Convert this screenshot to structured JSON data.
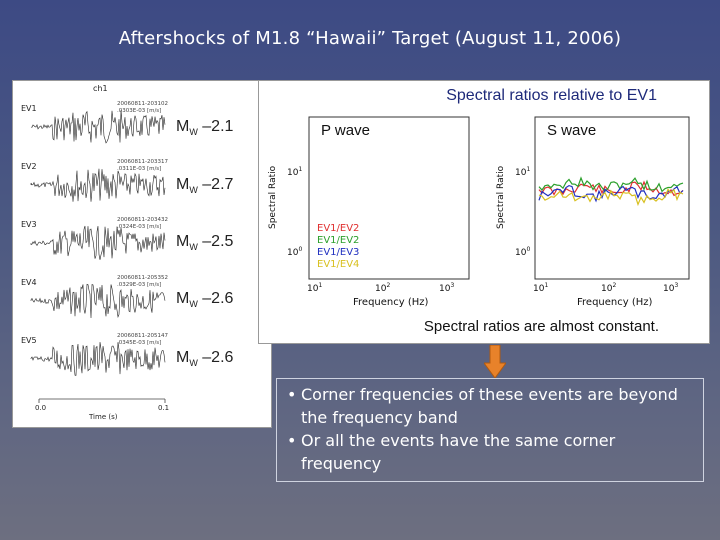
{
  "slide": {
    "title": "Aftershocks of M1.8 “Hawaii” Target (August 11, 2006)"
  },
  "waveforms": {
    "channel": "ch1",
    "events": [
      {
        "label": "EV1",
        "id": "20060811-203102",
        "amp": ".0303E-03 [m/s]",
        "mw": "M",
        "mw_sub": "W",
        "mw_value": " –2.1"
      },
      {
        "label": "EV2",
        "id": "20060811-203317",
        "amp": ".0311E-03 [m/s]",
        "mw": "M",
        "mw_sub": "W",
        "mw_value": " –2.7"
      },
      {
        "label": "EV3",
        "id": "20060811-203432",
        "amp": ".0324E-03 [m/s]",
        "mw": "M",
        "mw_sub": "W",
        "mw_value": " –2.5"
      },
      {
        "label": "EV4",
        "id": "20060811-205352",
        "amp": ".0329E-03 [m/s]",
        "mw": "M",
        "mw_sub": "W",
        "mw_value": " –2.6"
      },
      {
        "label": "EV5",
        "id": "20060811-205147",
        "amp": ".0345E-03 [m/s]",
        "mw": "M",
        "mw_sub": "W",
        "mw_value": " –2.6"
      }
    ],
    "x_ticks": [
      "0.0",
      "0.1"
    ],
    "x_label": "Time (s)"
  },
  "spectral": {
    "title": "Spectral ratios relative to EV1",
    "caption": "Spectral ratios are almost constant.",
    "left_panel": "P wave",
    "right_panel": "S wave",
    "y_label": "Spectral Ratio",
    "x_label": "Frequency (Hz)",
    "y_tick_hi": "10",
    "y_tick_hi_exp": "1",
    "y_tick_lo": "10",
    "y_tick_lo_exp": "0",
    "x_ticks": [
      {
        "base": "10",
        "exp": "1"
      },
      {
        "base": "10",
        "exp": "2"
      },
      {
        "base": "10",
        "exp": "3"
      }
    ],
    "legend": [
      {
        "label": "EV1/EV2",
        "color": "#e03030"
      },
      {
        "label": "EV1/EV2",
        "color": "#2ca02c"
      },
      {
        "label": "EV1/EV3",
        "color": "#2030c0"
      },
      {
        "label": "EV1/EV4",
        "color": "#d8c020"
      }
    ]
  },
  "conclusion": {
    "bullets": [
      "Corner frequencies of these events are beyond the frequency band",
      "Or all the events have the same corner frequency"
    ],
    "arrow_color": "#e8822a"
  }
}
